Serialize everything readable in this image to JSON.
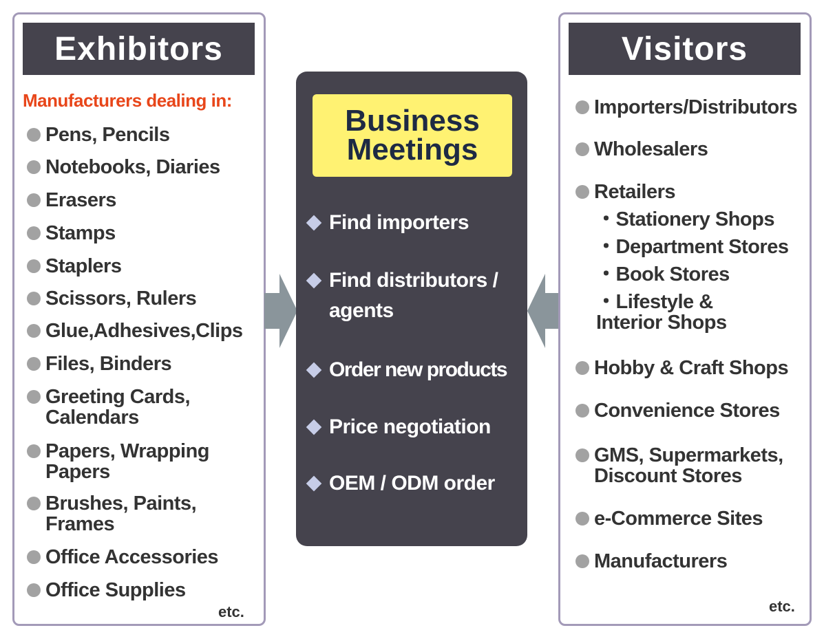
{
  "exhibitors": {
    "title": "Exhibitors",
    "subtitle": "Manufacturers dealing in:",
    "items": [
      "Pens, Pencils",
      "Notebooks, Diaries",
      "Erasers",
      "Stamps",
      "Staplers",
      "Scissors, Rulers",
      "Glue,Adhesives,Clips",
      "Files, Binders",
      "Greeting Cards, Calendars",
      "Papers, Wrapping Papers",
      "Brushes, Paints, Frames",
      "Office Accessories",
      "Office Supplies"
    ],
    "etc": "etc."
  },
  "center": {
    "title_line1": "Business",
    "title_line2": "Meetings",
    "items": [
      "Find importers",
      "Find distributors / agents",
      "Order new products",
      "Price negotiation",
      "OEM / ODM order"
    ]
  },
  "visitors": {
    "title": "Visitors",
    "items": [
      "Importers/Distributors",
      "Wholesalers",
      "Retailers"
    ],
    "retailer_subitems": [
      "・Stationery Shops",
      "・Department Stores",
      "・Book Stores",
      "・Lifestyle & Interior Shops"
    ],
    "items_after": [
      "Hobby & Craft Shops",
      "Convenience Stores",
      "GMS, Supermarkets, Discount Stores",
      "e-Commerce Sites",
      "Manufacturers"
    ],
    "etc": "etc."
  },
  "colors": {
    "panel_border": "#a39ab8",
    "header_bg": "#45434d",
    "subtitle": "#e8461a",
    "highlight": "#fff272",
    "arrow": "#8a959b"
  }
}
